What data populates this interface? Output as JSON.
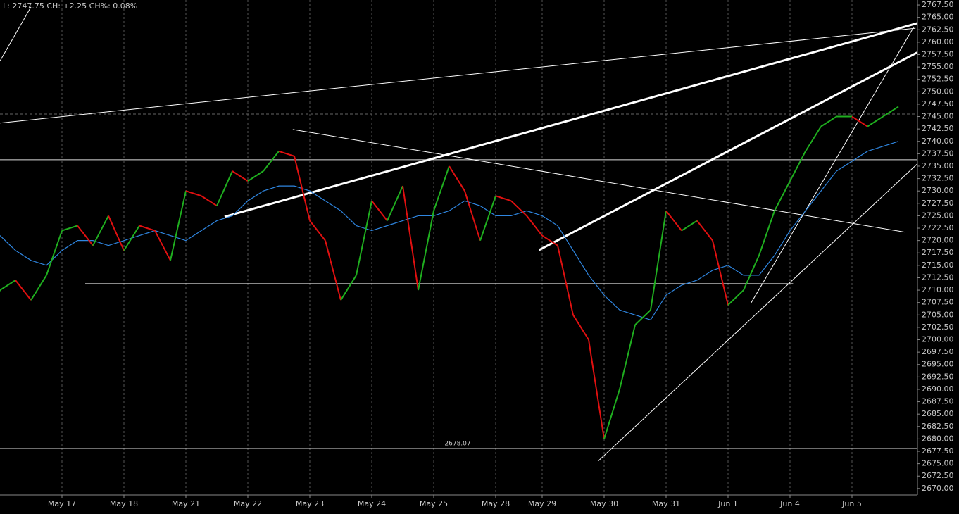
{
  "chart_data": {
    "type": "line",
    "title": "L: 2747.75 CH: +2.25 CH%: 0.08%",
    "categories": [
      null,
      null,
      null,
      null,
      "May 17",
      null,
      null,
      null,
      "May 18",
      null,
      null,
      null,
      "May 21",
      null,
      null,
      null,
      "May 22",
      null,
      null,
      null,
      "May 23",
      null,
      null,
      null,
      "May 24",
      null,
      null,
      null,
      "May 25",
      null,
      null,
      null,
      "May 28",
      null,
      null,
      "May 29",
      null,
      null,
      null,
      "May 30",
      null,
      null,
      null,
      "May 31",
      null,
      null,
      null,
      "Jun 1",
      null,
      null,
      null,
      "Jun 4",
      null,
      null,
      null,
      "Jun 5",
      null,
      null,
      null
    ],
    "series": [
      {
        "color": "#1fae1f",
        "down_color": "#e01010",
        "values": [
          2710,
          2712,
          2708,
          2713,
          2722,
          2723,
          2719,
          2725,
          2718,
          2723,
          2722,
          2716,
          2730,
          2729,
          2727,
          2734,
          2732,
          2734,
          2738,
          2737,
          2724,
          2720,
          2708,
          2713,
          2728,
          2724,
          2731,
          2710,
          2726,
          2735,
          2730,
          2720,
          2729,
          2728,
          2725,
          2721,
          2719,
          2705,
          2700,
          2680,
          2690,
          2703,
          2706,
          2726,
          2722,
          2724,
          2720,
          2707,
          2710,
          2717,
          2726,
          2732,
          2738,
          2743,
          2745,
          2745,
          2743,
          2745,
          2747
        ]
      },
      {
        "color": "#2f86e0",
        "values": [
          2721,
          2718,
          2716,
          2715,
          2718,
          2720,
          2720,
          2719,
          2720,
          2721,
          2722,
          2721,
          2720,
          2722,
          2724,
          2725,
          2728,
          2730,
          2731,
          2731,
          2730,
          2728,
          2726,
          2723,
          2722,
          2723,
          2724,
          2725,
          2725,
          2726,
          2728,
          2727,
          2725,
          2725,
          2726,
          2725,
          2723,
          2718,
          2713,
          2709,
          2706,
          2705,
          2704,
          2709,
          2711,
          2712,
          2714,
          2715,
          2713,
          2713,
          2717,
          2722,
          2726,
          2730,
          2734,
          2736,
          2738,
          2739,
          2740
        ]
      }
    ],
    "hlines": [
      {
        "value": 2736.3
      },
      {
        "value": 2711.3,
        "from": 5.5,
        "to": 51.2
      },
      {
        "value": 2678.07,
        "label": "2678.07"
      },
      {
        "value": 2745.5,
        "dashed": true
      }
    ],
    "trendlines": [
      {
        "x": [
          0,
          59.1
        ],
        "y": [
          2743.7,
          2762.8
        ],
        "width": 1
      },
      {
        "x": [
          14.5,
          59.2
        ],
        "y": [
          2724.8,
          2763.8
        ],
        "width": 3
      },
      {
        "x": [
          34.8,
          59.2
        ],
        "y": [
          2718.1,
          2757.9
        ],
        "width": 3
      },
      {
        "x": [
          18.9,
          58.4
        ],
        "y": [
          2742.4,
          2721.7
        ],
        "width": 1
      },
      {
        "x": [
          38.6,
          59.2
        ],
        "y": [
          2675.5,
          2735.4
        ],
        "width": 1
      },
      {
        "x": [
          48.5,
          59
        ],
        "y": [
          2707.5,
          2763.1
        ],
        "width": 1
      },
      {
        "x": [
          0,
          2
        ],
        "y": [
          2756.2,
          2767.1
        ],
        "width": 1
      }
    ],
    "ylim": [
      2668.7,
      2768.5
    ],
    "yticks": [
      {
        "value": 2670,
        "label": "2670.00"
      },
      {
        "value": 2672.5,
        "label": "2672.50"
      },
      {
        "value": 2675,
        "label": "2675.00"
      },
      {
        "value": 2677.5,
        "label": "2677.50"
      },
      {
        "value": 2680,
        "label": "2680.00"
      },
      {
        "value": 2682.5,
        "label": "2682.50"
      },
      {
        "value": 2685,
        "label": "2685.00"
      },
      {
        "value": 2687.5,
        "label": "2687.50"
      },
      {
        "value": 2690,
        "label": "2690.00"
      },
      {
        "value": 2692.5,
        "label": "2692.50"
      },
      {
        "value": 2695,
        "label": "2695.00"
      },
      {
        "value": 2697.5,
        "label": "2697.50"
      },
      {
        "value": 2700,
        "label": "2700.00"
      },
      {
        "value": 2702.5,
        "label": "2702.50"
      },
      {
        "value": 2705,
        "label": "2705.00"
      },
      {
        "value": 2707.5,
        "label": "2707.50"
      },
      {
        "value": 2710,
        "label": "2710.00"
      },
      {
        "value": 2712.5,
        "label": "2712.50"
      },
      {
        "value": 2715,
        "label": "2715.00"
      },
      {
        "value": 2717.5,
        "label": "2717.50"
      },
      {
        "value": 2720,
        "label": "2720.00"
      },
      {
        "value": 2722.5,
        "label": "2722.50"
      },
      {
        "value": 2725,
        "label": "2725.00"
      },
      {
        "value": 2727.5,
        "label": "2727.50"
      },
      {
        "value": 2730,
        "label": "2730.00"
      },
      {
        "value": 2732.5,
        "label": "2732.50"
      },
      {
        "value": 2735,
        "label": "2735.00"
      },
      {
        "value": 2737.5,
        "label": "2737.50"
      },
      {
        "value": 2740,
        "label": "2740.00"
      },
      {
        "value": 2742.5,
        "label": "2742.50"
      },
      {
        "value": 2745,
        "label": "2745.00"
      },
      {
        "value": 2747.5,
        "label": "2747.50"
      },
      {
        "value": 2750,
        "label": "2750.00"
      },
      {
        "value": 2752.5,
        "label": "2752.50"
      },
      {
        "value": 2755,
        "label": "2755.00"
      },
      {
        "value": 2757.5,
        "label": "2757.50"
      },
      {
        "value": 2760,
        "label": "2760.00"
      },
      {
        "value": 2762.5,
        "label": "2762.50"
      },
      {
        "value": 2765,
        "label": "2765.00"
      },
      {
        "value": 2767.5,
        "label": "2767.50"
      }
    ],
    "grid": true
  }
}
